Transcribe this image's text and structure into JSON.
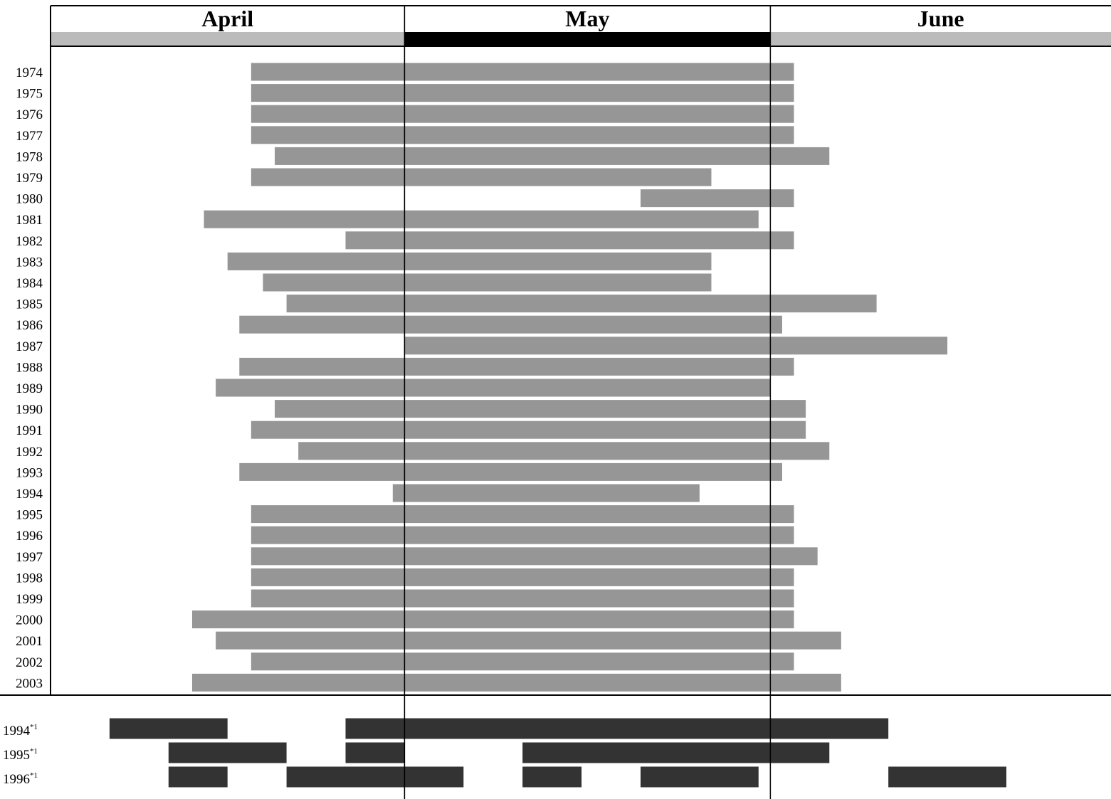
{
  "chart_data": {
    "type": "bar",
    "subtype": "gantt",
    "title": "",
    "xlabel": "",
    "ylabel": "",
    "months": [
      {
        "name": "April",
        "start_day": 0,
        "days": 30,
        "band_color": "#bbbbbb"
      },
      {
        "name": "May",
        "start_day": 30,
        "days": 31,
        "band_color": "#000000"
      },
      {
        "name": "June",
        "start_day": 61,
        "days": 30,
        "band_color": "#bbbbbb"
      }
    ],
    "x_unit": "day offset from April 1",
    "xlim": [
      0,
      91
    ],
    "series": [
      {
        "name": "",
        "color": "#969696",
        "rows": [
          {
            "label": "1974",
            "segments": [
              [
                17,
                63
              ]
            ]
          },
          {
            "label": "1975",
            "segments": [
              [
                17,
                63
              ]
            ]
          },
          {
            "label": "1976",
            "segments": [
              [
                17,
                63
              ]
            ]
          },
          {
            "label": "1977",
            "segments": [
              [
                17,
                63
              ]
            ]
          },
          {
            "label": "1978",
            "segments": [
              [
                19,
                66
              ]
            ]
          },
          {
            "label": "1979",
            "segments": [
              [
                17,
                56
              ]
            ]
          },
          {
            "label": "1980",
            "segments": [
              [
                50,
                63
              ]
            ]
          },
          {
            "label": "1981",
            "segments": [
              [
                13,
                60
              ]
            ]
          },
          {
            "label": "1982",
            "segments": [
              [
                25,
                63
              ]
            ]
          },
          {
            "label": "1983",
            "segments": [
              [
                15,
                56
              ]
            ]
          },
          {
            "label": "1984",
            "segments": [
              [
                18,
                56
              ]
            ]
          },
          {
            "label": "1985",
            "segments": [
              [
                20,
                70
              ]
            ]
          },
          {
            "label": "1986",
            "segments": [
              [
                16,
                62
              ]
            ]
          },
          {
            "label": "1987",
            "segments": [
              [
                30,
                76
              ]
            ]
          },
          {
            "label": "1988",
            "segments": [
              [
                16,
                63
              ]
            ]
          },
          {
            "label": "1989",
            "segments": [
              [
                14,
                61
              ]
            ]
          },
          {
            "label": "1990",
            "segments": [
              [
                19,
                64
              ]
            ]
          },
          {
            "label": "1991",
            "segments": [
              [
                17,
                64
              ]
            ]
          },
          {
            "label": "1992",
            "segments": [
              [
                21,
                66
              ]
            ]
          },
          {
            "label": "1993",
            "segments": [
              [
                16,
                62
              ]
            ]
          },
          {
            "label": "1994",
            "segments": [
              [
                29,
                55
              ]
            ]
          },
          {
            "label": "1995",
            "segments": [
              [
                17,
                63
              ]
            ]
          },
          {
            "label": "1996",
            "segments": [
              [
                17,
                63
              ]
            ]
          },
          {
            "label": "1997",
            "segments": [
              [
                17,
                65
              ]
            ]
          },
          {
            "label": "1998",
            "segments": [
              [
                17,
                63
              ]
            ]
          },
          {
            "label": "1999",
            "segments": [
              [
                17,
                63
              ]
            ]
          },
          {
            "label": "2000",
            "segments": [
              [
                12,
                63
              ]
            ]
          },
          {
            "label": "2001",
            "segments": [
              [
                14,
                67
              ]
            ]
          },
          {
            "label": "2002",
            "segments": [
              [
                17,
                63
              ]
            ]
          },
          {
            "label": "2003",
            "segments": [
              [
                12,
                67
              ]
            ]
          }
        ]
      },
      {
        "name": "",
        "color": "#333333",
        "rows": [
          {
            "label": "1994",
            "sup": "*1",
            "segments": [
              [
                5,
                15
              ],
              [
                25,
                71
              ]
            ]
          },
          {
            "label": "1995",
            "sup": "*1",
            "segments": [
              [
                10,
                20
              ],
              [
                25,
                30
              ],
              [
                40,
                66
              ]
            ]
          },
          {
            "label": "1996",
            "sup": "*1",
            "segments": [
              [
                10,
                15
              ],
              [
                20,
                35
              ],
              [
                40,
                45
              ],
              [
                50,
                60
              ],
              [
                71,
                81
              ]
            ]
          }
        ]
      }
    ],
    "grid": false,
    "legend": "none"
  }
}
